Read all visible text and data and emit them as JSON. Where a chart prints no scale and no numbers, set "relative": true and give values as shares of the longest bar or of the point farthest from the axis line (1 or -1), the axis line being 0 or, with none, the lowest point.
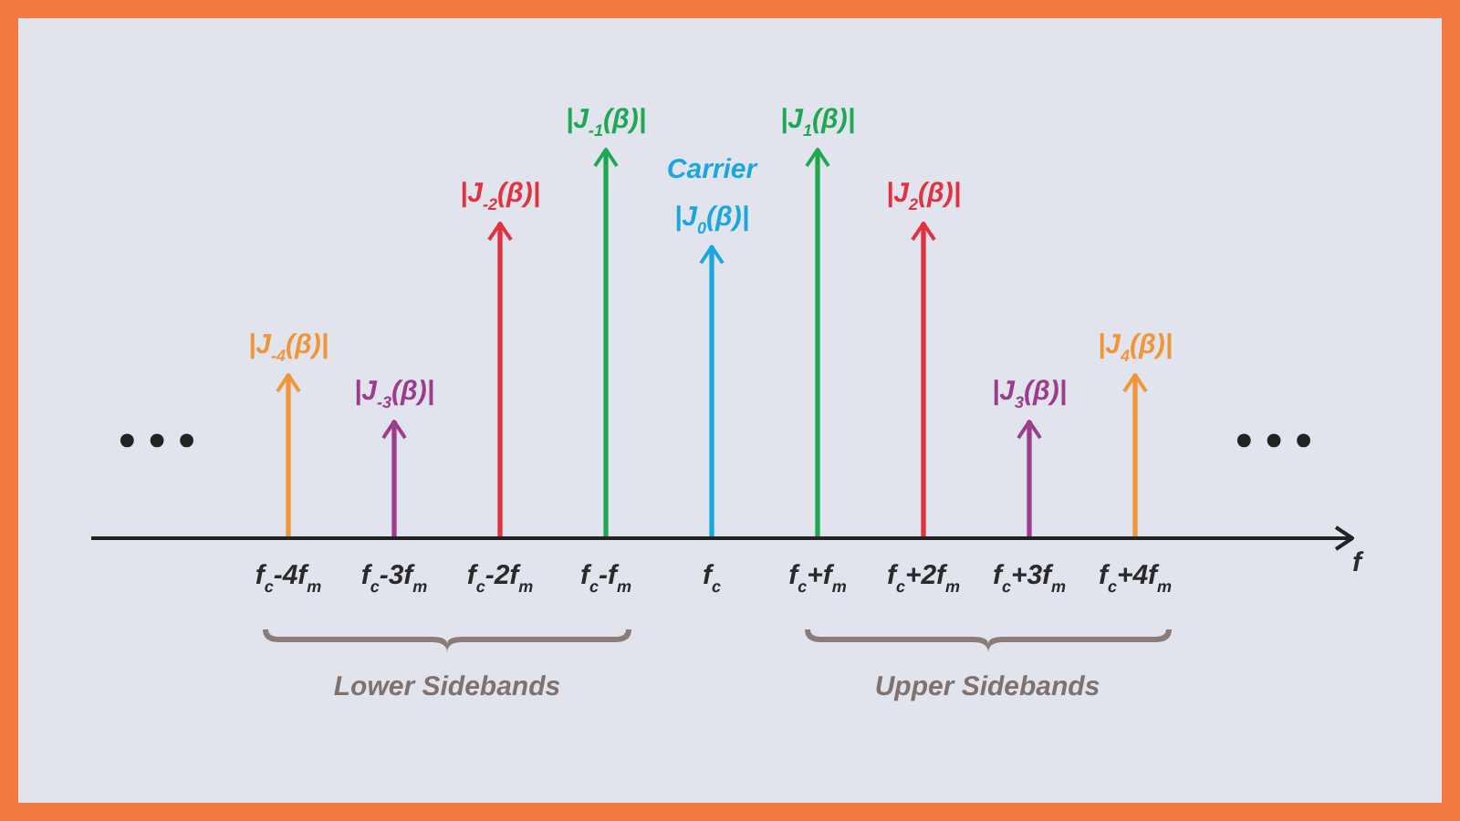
{
  "chart_data": {
    "type": "bar",
    "relative": true,
    "categories": [
      "f$_{c}$-4f$_{m}$",
      "f$_{c}$-3f$_{m}$",
      "f$_{c}$-2f$_{m}$",
      "f$_{c}$-f$_{m}$",
      "f$_{c}$",
      "f$_{c}$+f$_{m}$",
      "f$_{c}$+2f$_{m}$",
      "f$_{c}$+3f$_{m}$",
      "f$_{c}$+4f$_{m}$"
    ],
    "values": [
      0.42,
      0.3,
      0.81,
      1,
      0.75,
      1,
      0.81,
      0.3,
      0.42
    ],
    "colors": [
      "#f0953a",
      "#9b3d8c",
      "#e0323f",
      "#1ea854",
      "#1aa7e0",
      "#1ea854",
      "#e0323f",
      "#9b3d8c",
      "#f0953a"
    ],
    "annotations": [
      "|J$_{-4}$(β)|",
      "|J$_{-3}$(β)|",
      "|J$_{-2}$(β)|",
      "|J$_{-1}$(β)|",
      "|J$_{0}$(β)|",
      "|J$_{1}$(β)|",
      "|J$_{2}$(β)|",
      "|J$_{3}$(β)|",
      "|J$_{4}$(β)|",
      "Carrier",
      "Lower Sidebands",
      "Upper Sidebands",
      "• • •",
      "• • •",
      "f"
    ],
    "legend": false
  }
}
